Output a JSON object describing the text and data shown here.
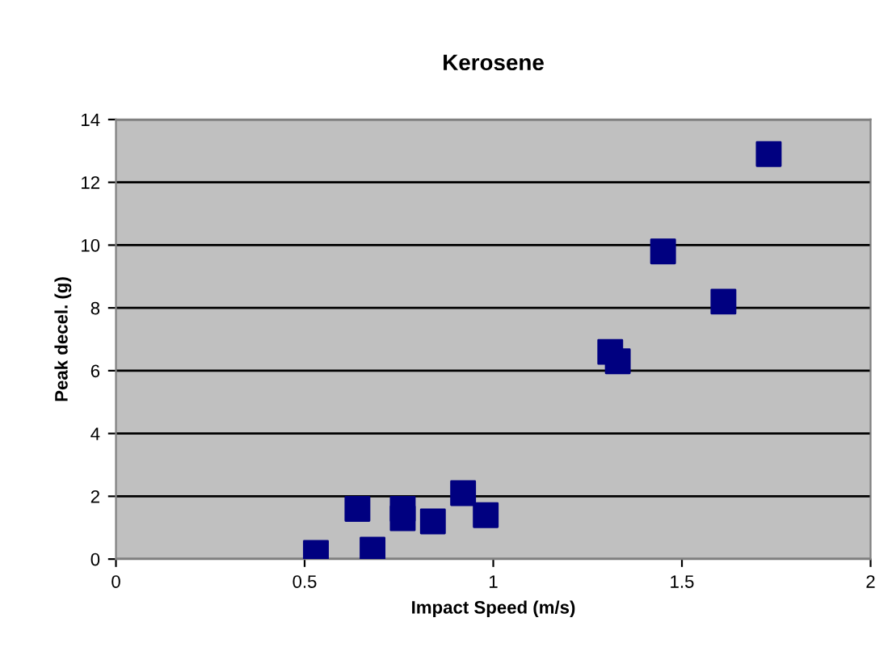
{
  "chart_data": {
    "type": "scatter",
    "title": "Kerosene",
    "xlabel": "Impact Speed (m/s)",
    "ylabel": "Peak decel. (g)",
    "series": [
      {
        "color": "#000080",
        "x": [
          0.53,
          0.64,
          0.68,
          0.76,
          0.76,
          0.84,
          0.92,
          0.98,
          1.31,
          1.33,
          1.45,
          1.61,
          1.73
        ],
        "values": [
          0.2,
          1.6,
          0.3,
          1.6,
          1.3,
          1.2,
          2.1,
          1.4,
          6.6,
          6.3,
          9.8,
          8.2,
          12.9
        ]
      }
    ],
    "xlim": [
      0,
      2
    ],
    "xticks": [
      0,
      0.5,
      1,
      1.5,
      2
    ],
    "ylim": [
      0,
      14
    ],
    "yticks": [
      0,
      2,
      4,
      6,
      8,
      10,
      12,
      14
    ],
    "grid": "y",
    "marker": "square",
    "legend": false
  }
}
